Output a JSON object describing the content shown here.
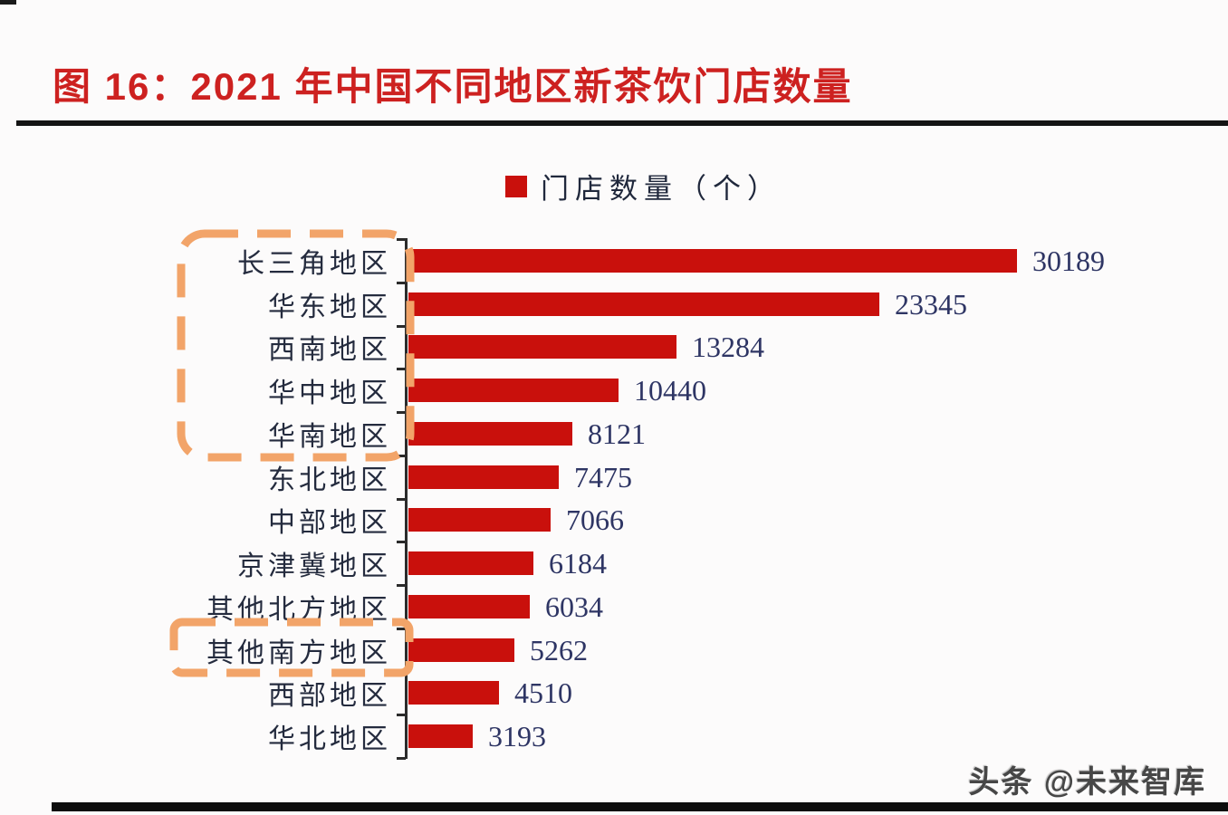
{
  "page": {
    "title": "图 16：2021 年中国不同地区新茶饮门店数量",
    "watermark": "头条 @未来智库"
  },
  "legend": {
    "label": "门店数量（个）"
  },
  "colors": {
    "title_red": "#cd2120",
    "bar_red": "#c9100c",
    "value_text_navy": "#2e3564",
    "category_text": "#242b3e",
    "highlight_dash_orange": "#f2a469",
    "axis_black": "#2b2b2b"
  },
  "chart_data": {
    "type": "bar",
    "orientation": "horizontal",
    "title": "图 16：2021 年中国不同地区新茶饮门店数量",
    "legend_entries": [
      "门店数量（个）"
    ],
    "legend_position": "top-center",
    "categories": [
      "长三角地区",
      "华东地区",
      "西南地区",
      "华中地区",
      "华南地区",
      "东北地区",
      "中部地区",
      "京津冀地区",
      "其他北方地区",
      "其他南方地区",
      "西部地区",
      "华北地区"
    ],
    "values": [
      30189,
      23345,
      13284,
      10440,
      8121,
      7475,
      7066,
      6184,
      6034,
      5262,
      4510,
      3193
    ],
    "xlim": [
      0,
      32000
    ],
    "grid": false,
    "value_labels": "end-of-bar",
    "annotations": [
      {
        "type": "dashed-box",
        "name": "top-five-regions-highlight",
        "categories": [
          "长三角地区",
          "华东地区",
          "西南地区",
          "华中地区",
          "华南地区"
        ]
      },
      {
        "type": "dashed-box",
        "name": "other-southern-region-highlight",
        "categories": [
          "其他南方地区"
        ]
      }
    ]
  }
}
